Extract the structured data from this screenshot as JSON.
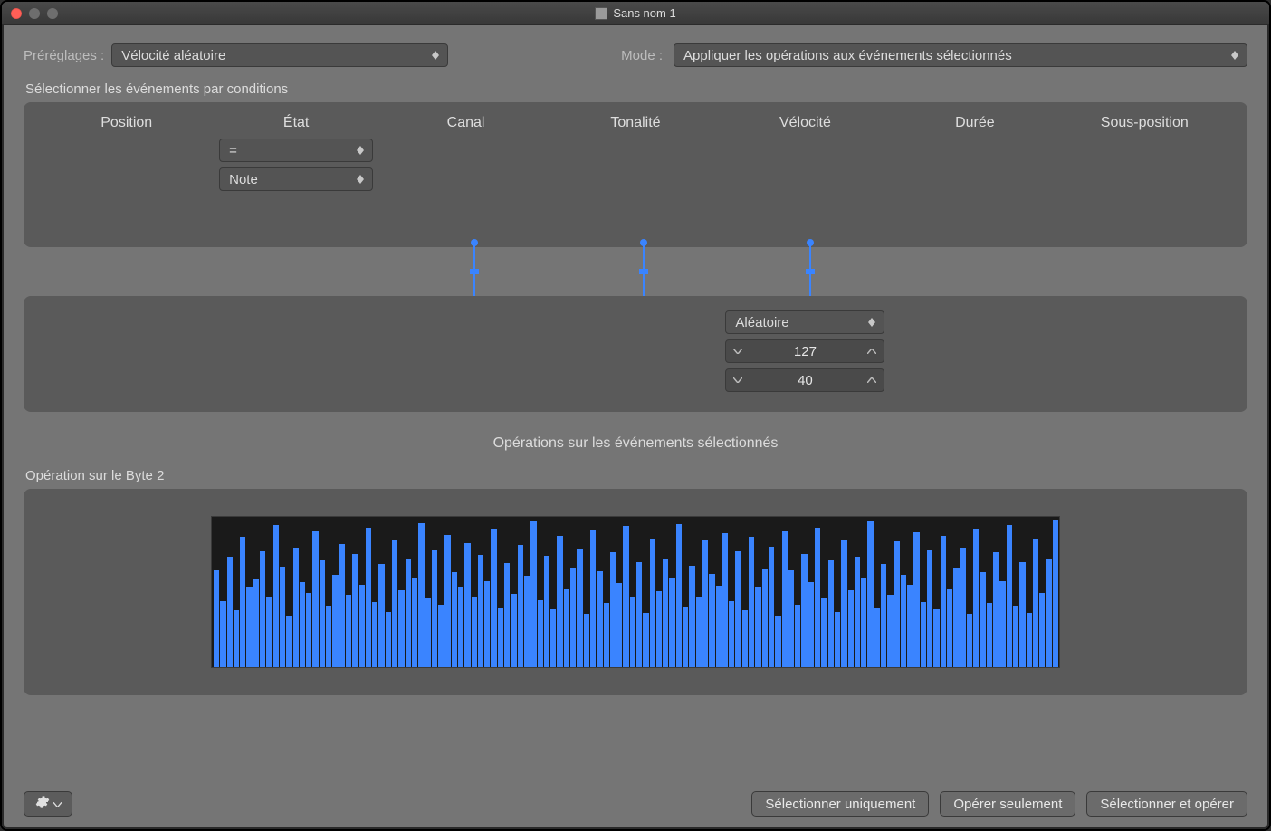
{
  "window": {
    "title": "Sans nom 1"
  },
  "colors": {
    "bg_window": "#757575",
    "bg_panel": "#5a5a5a",
    "bg_dropdown": "#545454",
    "text": "#dcdcdc",
    "accent": "#3a84ff",
    "graph_bg": "#1a1a1a"
  },
  "top": {
    "presets_label": "Préréglages :",
    "presets_value": "Vélocité aléatoire",
    "mode_label": "Mode :",
    "mode_value": "Appliquer les opérations aux événements sélectionnés"
  },
  "conditions": {
    "section_label": "Sélectionner les événements par conditions",
    "headers": [
      "Position",
      "État",
      "Canal",
      "Tonalité",
      "Vélocité",
      "Durée",
      "Sous-position"
    ],
    "etat_operator": "=",
    "etat_value": "Note"
  },
  "velocity_op": {
    "mode": "Aléatoire",
    "max": "127",
    "min": "40"
  },
  "ops_title": "Opérations sur les événements sélectionnés",
  "byte2": {
    "label": "Opération sur le Byte 2",
    "chart": {
      "type": "bar",
      "bar_count": 128,
      "bar_color": "#3a84ff",
      "background_color": "#1a1a1a",
      "ymin": 0,
      "ymax": 127,
      "values": [
        82,
        56,
        93,
        48,
        110,
        67,
        74,
        98,
        59,
        120,
        85,
        44,
        101,
        72,
        63,
        115,
        90,
        52,
        78,
        104,
        61,
        96,
        70,
        118,
        55,
        87,
        47,
        108,
        65,
        92,
        76,
        122,
        58,
        99,
        53,
        112,
        80,
        68,
        105,
        60,
        95,
        73,
        117,
        50,
        88,
        62,
        103,
        77,
        124,
        57,
        94,
        49,
        111,
        66,
        84,
        100,
        45,
        116,
        81,
        54,
        97,
        71,
        119,
        59,
        89,
        46,
        109,
        64,
        91,
        75,
        121,
        51,
        86,
        60,
        107,
        79,
        69,
        113,
        56,
        98,
        48,
        110,
        67,
        83,
        102,
        44,
        115,
        82,
        53,
        96,
        72,
        118,
        58,
        90,
        47,
        108,
        65,
        93,
        76,
        123,
        50,
        87,
        61,
        106,
        78,
        70,
        114,
        55,
        99,
        49,
        111,
        66,
        84,
        101,
        45,
        117,
        80,
        54,
        97,
        73,
        120,
        52,
        89,
        46,
        109,
        63,
        92,
        125
      ]
    }
  },
  "footer": {
    "select_only": "Sélectionner uniquement",
    "operate_only": "Opérer seulement",
    "select_and_operate": "Sélectionner et opérer"
  }
}
